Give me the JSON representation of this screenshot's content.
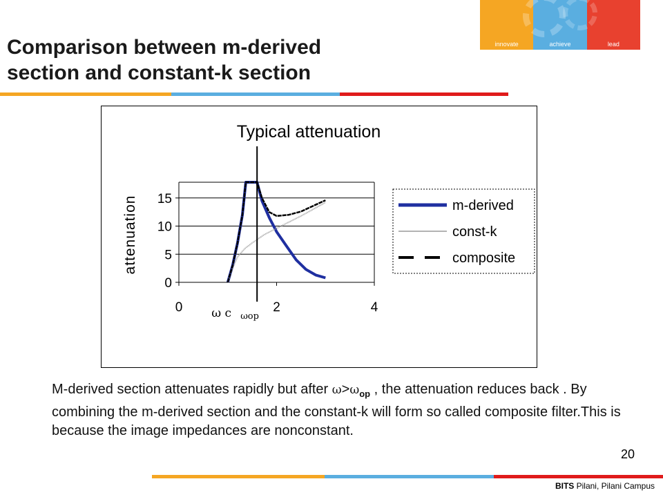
{
  "logo": {
    "words": [
      "innovate",
      "achieve",
      "lead"
    ],
    "colors": [
      "#f5a623",
      "#5aaee0",
      "#e8412f"
    ]
  },
  "slide": {
    "title_line1": "Comparison between m-derived",
    "title_line2": "section and constant-k section",
    "page_number": "20",
    "footer_bold": "BITS",
    "footer_rest": " Pilani, Pilani Campus"
  },
  "body": {
    "text_part1": "M-derived  section attenuates rapidly but after ",
    "omega": "ω",
    "gt": ">",
    "omega2": "ω",
    "sub_op": "op",
    "text_part2": " , the attenuation reduces back . By combining the m-derived section and the constant-k will form so called composite filter.This is because the image impedances are nonconstant."
  },
  "colors": {
    "orange": "#f5a623",
    "blue": "#5aaee0",
    "red": "#e01b1b",
    "m_derived": "#1f2fa0",
    "const_k": "#999999",
    "composite": "#000000"
  },
  "chart_data": {
    "type": "line",
    "title": "Typical attenuation",
    "xlabel": "",
    "ylabel": "attenuation",
    "xlim": [
      0,
      4
    ],
    "ylim": [
      0,
      17.8
    ],
    "x_ticks": [
      "0",
      "2",
      "4"
    ],
    "y_ticks": [
      "0",
      "5",
      "10",
      "15"
    ],
    "grid": "horizontal",
    "legend_position": "right",
    "annotation_omega_c": "ω c",
    "annotation_omega_op": "ωop",
    "series": [
      {
        "name": "m-derived",
        "points": [
          [
            1.0,
            0
          ],
          [
            1.1,
            3
          ],
          [
            1.2,
            7
          ],
          [
            1.3,
            12
          ],
          [
            1.37,
            17.8
          ],
          [
            1.6,
            17.8
          ],
          [
            1.7,
            14.5
          ],
          [
            1.85,
            11.5
          ],
          [
            2.0,
            9
          ],
          [
            2.2,
            6.5
          ],
          [
            2.4,
            4
          ],
          [
            2.6,
            2.3
          ],
          [
            2.8,
            1.3
          ],
          [
            3.0,
            0.8
          ]
        ]
      },
      {
        "name": "const-k",
        "points": [
          [
            1.0,
            0
          ],
          [
            1.1,
            2.5
          ],
          [
            1.2,
            4.5
          ],
          [
            1.35,
            6
          ],
          [
            1.5,
            7
          ],
          [
            1.75,
            8.5
          ],
          [
            2.0,
            9.6
          ],
          [
            2.25,
            10.7
          ],
          [
            2.5,
            11.8
          ],
          [
            2.75,
            13
          ],
          [
            3.0,
            14.2
          ]
        ]
      },
      {
        "name": "composite",
        "points": [
          [
            1.0,
            0
          ],
          [
            1.1,
            3
          ],
          [
            1.2,
            7
          ],
          [
            1.3,
            12
          ],
          [
            1.37,
            17.8
          ],
          [
            1.6,
            17.8
          ],
          [
            1.7,
            15
          ],
          [
            1.85,
            12.5
          ],
          [
            2.0,
            11.8
          ],
          [
            2.25,
            12
          ],
          [
            2.5,
            12.6
          ],
          [
            2.75,
            13.6
          ],
          [
            3.0,
            14.6
          ]
        ]
      }
    ]
  }
}
